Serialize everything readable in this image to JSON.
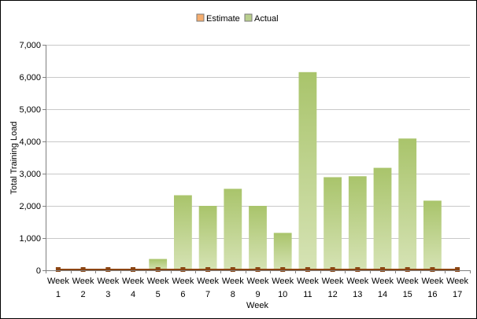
{
  "chart_data": {
    "type": "bar",
    "legend": {
      "placement": "top-center",
      "entries": [
        {
          "name": "Estimate",
          "color": "#F5AD6E"
        },
        {
          "name": "Actual",
          "color": "#B9CF8E"
        }
      ]
    },
    "xlabel": "Week",
    "ylabel": "Total Training Load",
    "ylim": [
      0,
      7000
    ],
    "yticks": [
      "0",
      "1,000",
      "2,000",
      "3,000",
      "4,000",
      "5,000",
      "6,000",
      "7,000"
    ],
    "ytick_values": [
      0,
      1000,
      2000,
      3000,
      4000,
      5000,
      6000,
      7000
    ],
    "grid": true,
    "categories": [
      [
        "Week",
        "1"
      ],
      [
        "Week",
        "2"
      ],
      [
        "Week",
        "3"
      ],
      [
        "Week",
        "4"
      ],
      [
        "Week",
        "5"
      ],
      [
        "Week",
        "6"
      ],
      [
        "Week",
        "7"
      ],
      [
        "Week",
        "8"
      ],
      [
        "Week",
        "9"
      ],
      [
        "Week",
        "10"
      ],
      [
        "Week",
        "11"
      ],
      [
        "Week",
        "12"
      ],
      [
        "Week",
        "13"
      ],
      [
        "Week",
        "14"
      ],
      [
        "Week",
        "15"
      ],
      [
        "Week",
        "16"
      ],
      [
        "Week",
        "17"
      ]
    ],
    "series": [
      {
        "name": "Estimate",
        "type": "line",
        "color": "#8B4513",
        "values": [
          0,
          0,
          0,
          0,
          0,
          0,
          0,
          0,
          0,
          0,
          0,
          0,
          0,
          0,
          0,
          0,
          0
        ]
      },
      {
        "name": "Actual",
        "type": "bar",
        "color_top": "#A9C46B",
        "color_bottom": "#D6E3B5",
        "values": [
          0,
          0,
          0,
          0,
          350,
          2330,
          2000,
          2530,
          2000,
          1160,
          6150,
          2890,
          2920,
          3180,
          4090,
          2160,
          0
        ]
      }
    ]
  }
}
